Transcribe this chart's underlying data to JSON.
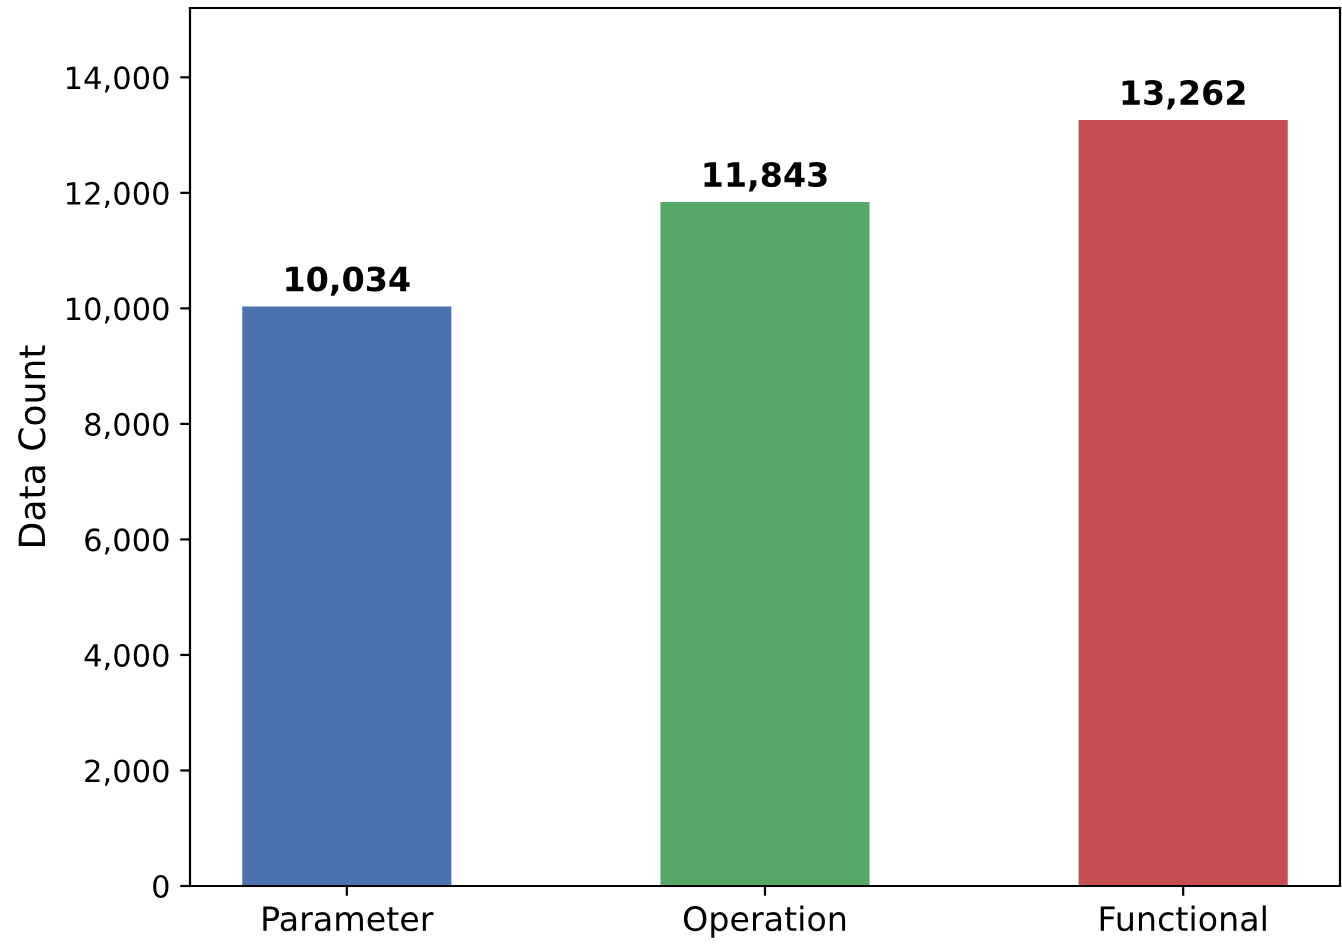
{
  "chart_data": {
    "type": "bar",
    "ylabel": "Data Count",
    "categories": [
      "Parameter",
      "Operation",
      "Functional"
    ],
    "values": [
      10034,
      11843,
      13262
    ],
    "colors": [
      "#4c72b0",
      "#55a868",
      "#c44e52"
    ],
    "value_labels": [
      "10,034",
      "11,843",
      "13,262"
    ],
    "ylim": [
      0,
      15200
    ],
    "yticks": [
      0,
      {
        "value": 2000,
        "label": "2,000"
      },
      {
        "value": 4000,
        "label": "4,000"
      },
      {
        "value": 6000,
        "label": "6,000"
      },
      {
        "value": 8000,
        "label": "8,000"
      },
      {
        "value": 10000,
        "label": "10,000"
      },
      {
        "value": 12000,
        "label": "12,000"
      },
      {
        "value": 14000,
        "label": "14,000"
      }
    ],
    "grid": false,
    "legend": false
  }
}
